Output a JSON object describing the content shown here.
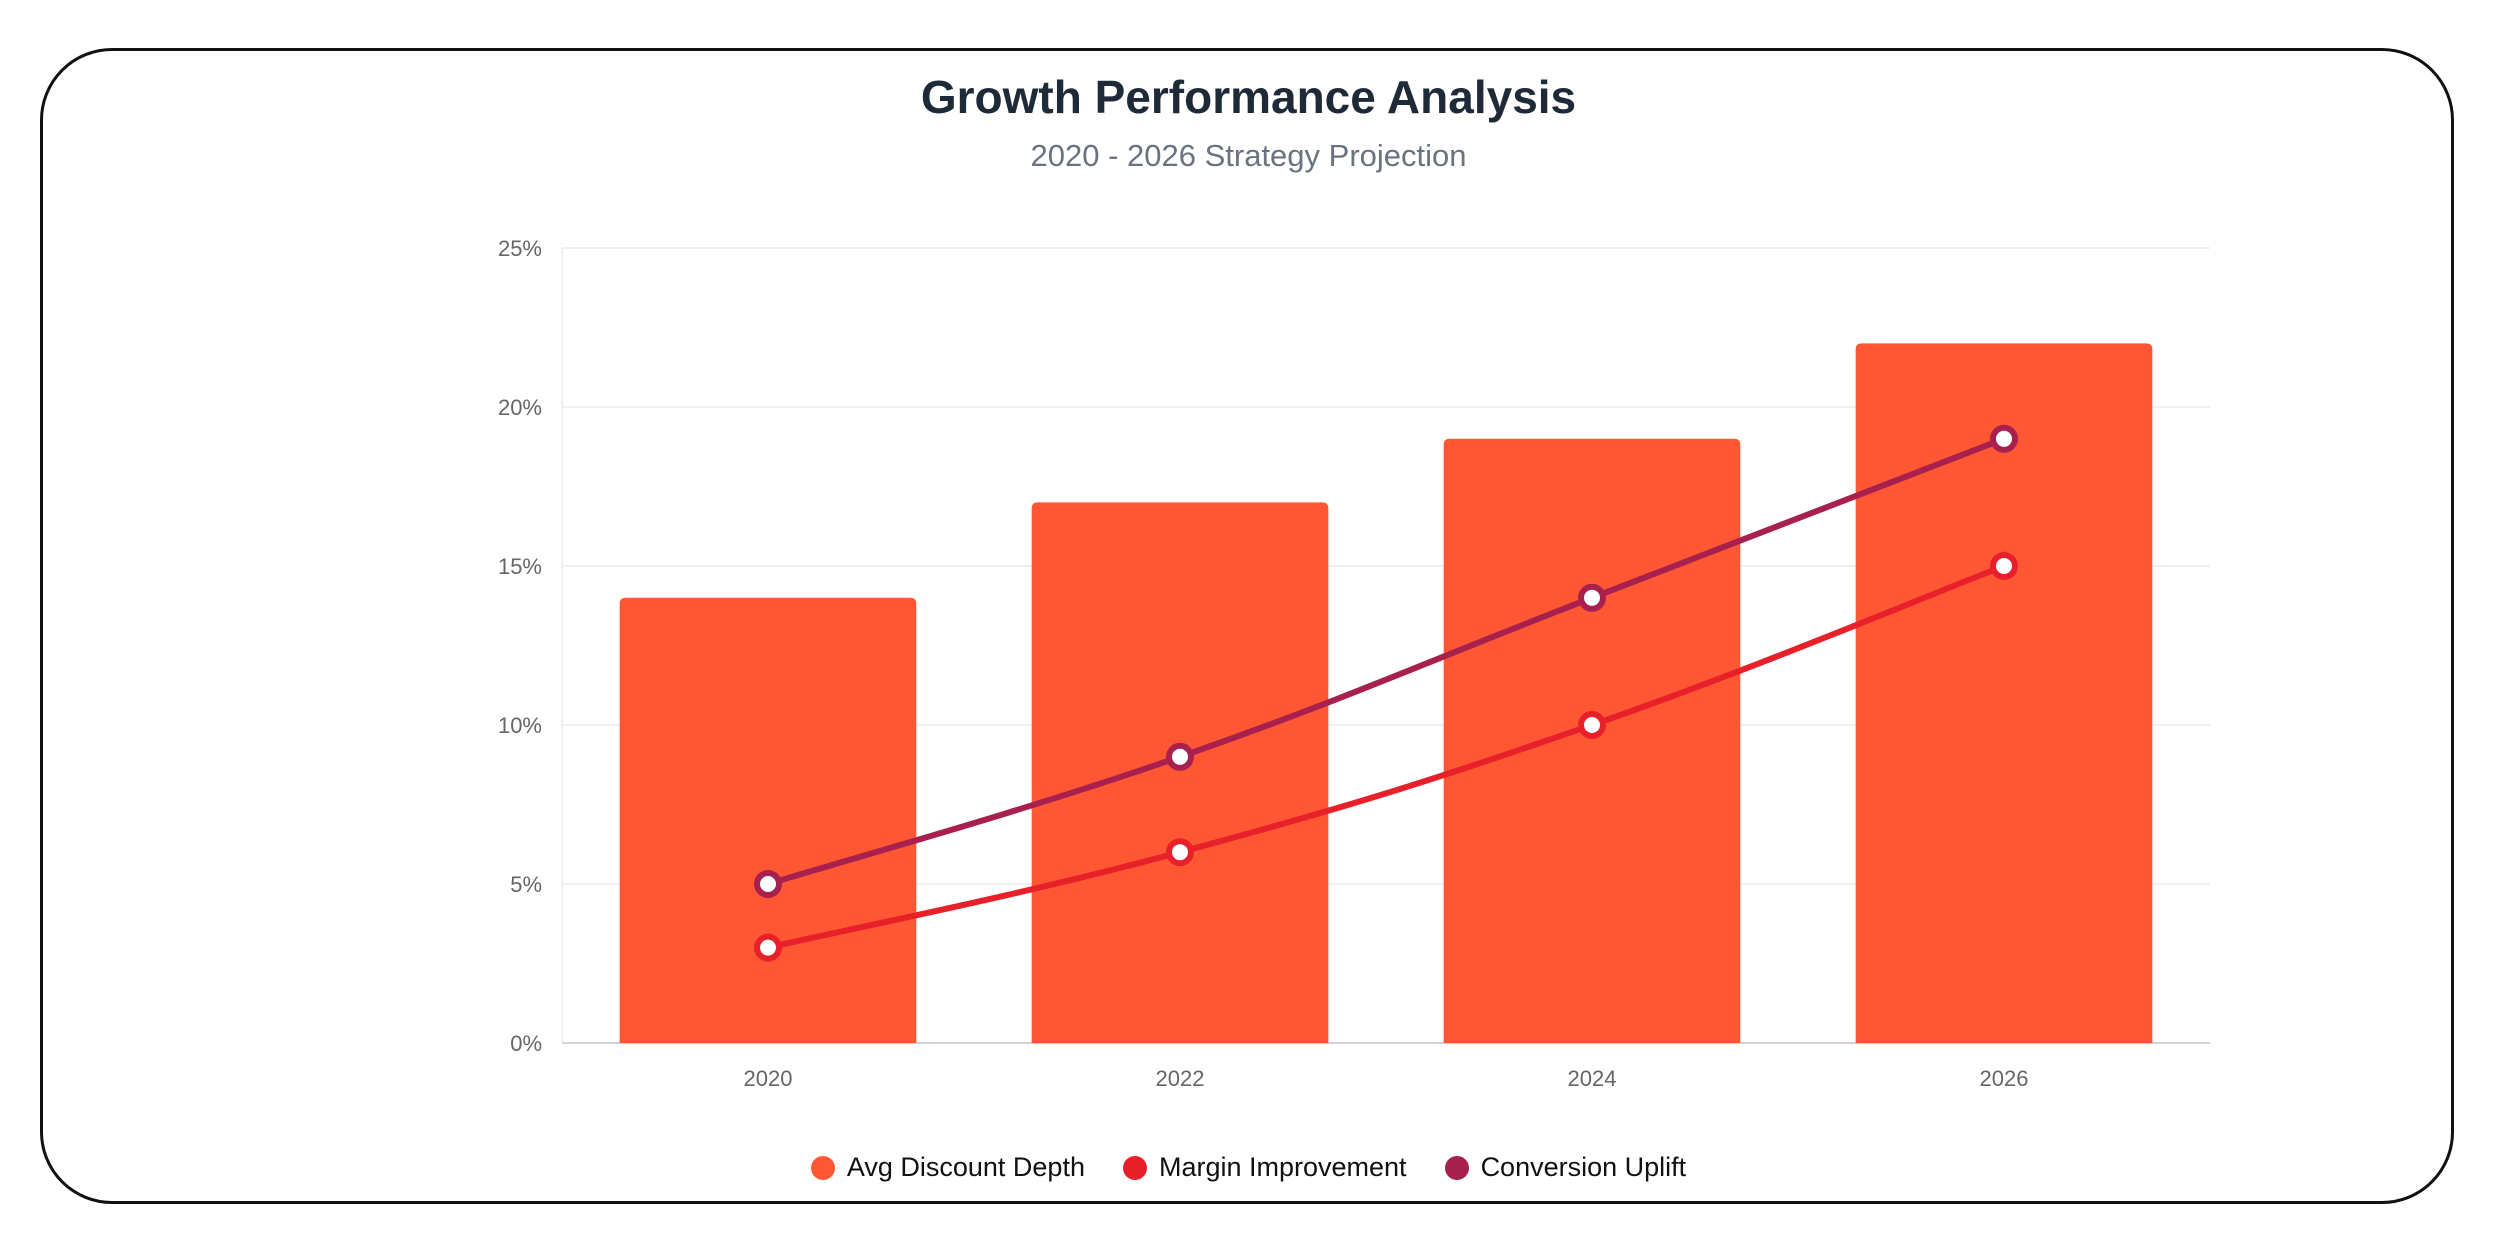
{
  "chart_data": {
    "type": "bar",
    "title": "Growth Performance Analysis",
    "subtitle": "2020 - 2026 Strategy Projection",
    "xlabel": "",
    "ylabel": "",
    "categories": [
      "2020",
      "2022",
      "2024",
      "2026"
    ],
    "ylim": [
      0,
      25
    ],
    "yticks": [
      "0%",
      "5%",
      "10%",
      "15%",
      "20%",
      "25%"
    ],
    "ytick_values": [
      0,
      5,
      10,
      15,
      20,
      25
    ],
    "grid": true,
    "legend_position": "bottom",
    "series": [
      {
        "name": "Avg Discount Depth",
        "type": "bar",
        "color": "#FF5733",
        "values": [
          14,
          17,
          19,
          22
        ]
      },
      {
        "name": "Margin Improvement",
        "type": "line",
        "color": "#E8202A",
        "values": [
          3,
          6,
          10,
          15
        ]
      },
      {
        "name": "Conversion Uplift",
        "type": "line",
        "color": "#A8204E",
        "values": [
          5,
          9,
          14,
          19
        ]
      }
    ]
  }
}
